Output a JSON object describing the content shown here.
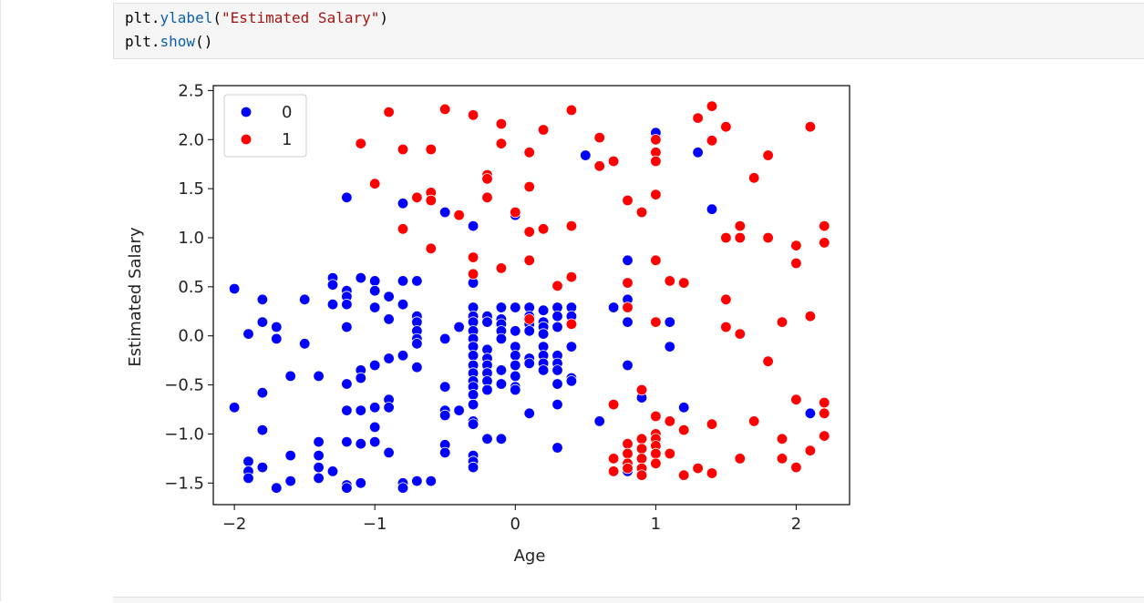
{
  "code_cell": {
    "lines": [
      [
        {
          "t": "plt.",
          "c": ""
        },
        {
          "t": "ylabel",
          "c": "fn"
        },
        {
          "t": "(",
          "c": ""
        },
        {
          "t": "\"Estimated Salary\"",
          "c": "str"
        },
        {
          "t": ")",
          "c": ""
        }
      ],
      [
        {
          "t": "plt.",
          "c": ""
        },
        {
          "t": "show",
          "c": "fn"
        },
        {
          "t": "()",
          "c": ""
        }
      ]
    ]
  },
  "colors": {
    "class_0": "#0000ff",
    "class_1": "#ff0000",
    "code_fn": "#0f5fa8",
    "code_str": "#a31515"
  },
  "chart_data": {
    "type": "scatter",
    "title": "",
    "xlabel": "Age",
    "ylabel": "Estimated Salary",
    "xlim": [
      -2.15,
      2.38
    ],
    "ylim": [
      -1.72,
      2.55
    ],
    "xticks": [
      -2,
      -1,
      0,
      1,
      2
    ],
    "yticks": [
      -1.5,
      -1.0,
      -0.5,
      0.0,
      0.5,
      1.0,
      1.5,
      2.0,
      2.5
    ],
    "xtick_labels": [
      "−2",
      "−1",
      "0",
      "1",
      "2"
    ],
    "ytick_labels": [
      "−1.5",
      "−1.0",
      "−0.5",
      "0.0",
      "0.5",
      "1.0",
      "1.5",
      "2.0",
      "2.5"
    ],
    "grid": false,
    "legend_position": "upper-left",
    "series": [
      {
        "name": "0",
        "color": "#0000ff",
        "points": [
          [
            -2.0,
            0.48
          ],
          [
            -2.0,
            -0.73
          ],
          [
            -1.9,
            0.02
          ],
          [
            -1.9,
            -1.28
          ],
          [
            -1.9,
            -1.38
          ],
          [
            -1.9,
            -1.45
          ],
          [
            -1.8,
            0.37
          ],
          [
            -1.8,
            0.14
          ],
          [
            -1.8,
            -0.58
          ],
          [
            -1.8,
            -0.96
          ],
          [
            -1.8,
            -1.34
          ],
          [
            -1.7,
            0.09
          ],
          [
            -1.7,
            -0.03
          ],
          [
            -1.7,
            -1.55
          ],
          [
            -1.6,
            -0.41
          ],
          [
            -1.6,
            -1.22
          ],
          [
            -1.6,
            -1.48
          ],
          [
            -1.5,
            0.37
          ],
          [
            -1.5,
            -0.08
          ],
          [
            -1.4,
            -0.41
          ],
          [
            -1.4,
            -1.08
          ],
          [
            -1.4,
            -1.22
          ],
          [
            -1.4,
            -1.34
          ],
          [
            -1.4,
            -1.45
          ],
          [
            -1.3,
            0.59
          ],
          [
            -1.3,
            0.52
          ],
          [
            -1.3,
            0.32
          ],
          [
            -1.3,
            -1.38
          ],
          [
            -1.2,
            1.41
          ],
          [
            -1.2,
            0.46
          ],
          [
            -1.2,
            0.4
          ],
          [
            -1.2,
            0.32
          ],
          [
            -1.2,
            0.09
          ],
          [
            -1.2,
            -0.49
          ],
          [
            -1.2,
            -0.76
          ],
          [
            -1.2,
            -1.08
          ],
          [
            -1.2,
            -1.52
          ],
          [
            -1.2,
            -1.55
          ],
          [
            -1.1,
            0.59
          ],
          [
            -1.1,
            -0.35
          ],
          [
            -1.1,
            -0.43
          ],
          [
            -1.1,
            -0.76
          ],
          [
            -1.1,
            -1.1
          ],
          [
            -1.1,
            -1.5
          ],
          [
            -1.0,
            0.56
          ],
          [
            -1.0,
            0.46
          ],
          [
            -1.0,
            0.29
          ],
          [
            -1.0,
            -0.3
          ],
          [
            -1.0,
            -0.73
          ],
          [
            -1.0,
            -0.93
          ],
          [
            -1.0,
            -1.08
          ],
          [
            -0.9,
            0.4
          ],
          [
            -0.9,
            0.17
          ],
          [
            -0.9,
            -0.23
          ],
          [
            -0.9,
            -0.65
          ],
          [
            -0.9,
            -0.73
          ],
          [
            -0.9,
            -1.19
          ],
          [
            -0.8,
            1.35
          ],
          [
            -0.8,
            0.56
          ],
          [
            -0.8,
            0.32
          ],
          [
            -0.8,
            -0.2
          ],
          [
            -0.8,
            -1.5
          ],
          [
            -0.8,
            -1.55
          ],
          [
            -0.7,
            0.56
          ],
          [
            -0.7,
            0.2
          ],
          [
            -0.7,
            0.14
          ],
          [
            -0.7,
            0.05
          ],
          [
            -0.7,
            -0.03
          ],
          [
            -0.7,
            -0.08
          ],
          [
            -0.7,
            -0.32
          ],
          [
            -0.7,
            -1.48
          ],
          [
            -0.6,
            -1.48
          ],
          [
            -0.5,
            1.26
          ],
          [
            -0.5,
            -0.03
          ],
          [
            -0.5,
            -0.52
          ],
          [
            -0.5,
            -0.76
          ],
          [
            -0.5,
            -0.81
          ],
          [
            -0.5,
            -1.11
          ],
          [
            -0.5,
            -1.19
          ],
          [
            -0.4,
            0.09
          ],
          [
            -0.4,
            -0.76
          ],
          [
            -0.3,
            1.12
          ],
          [
            -0.3,
            0.54
          ],
          [
            -0.3,
            0.29
          ],
          [
            -0.3,
            0.2
          ],
          [
            -0.3,
            0.14
          ],
          [
            -0.3,
            0.05
          ],
          [
            -0.3,
            -0.03
          ],
          [
            -0.3,
            -0.11
          ],
          [
            -0.3,
            -0.2
          ],
          [
            -0.3,
            -0.3
          ],
          [
            -0.3,
            -0.38
          ],
          [
            -0.3,
            -0.46
          ],
          [
            -0.3,
            -0.52
          ],
          [
            -0.3,
            -0.6
          ],
          [
            -0.3,
            -0.7
          ],
          [
            -0.3,
            -0.87
          ],
          [
            -0.3,
            -0.9
          ],
          [
            -0.3,
            -1.22
          ],
          [
            -0.3,
            -1.28
          ],
          [
            -0.3,
            -1.34
          ],
          [
            -0.2,
            0.2
          ],
          [
            -0.2,
            0.14
          ],
          [
            -0.2,
            -0.14
          ],
          [
            -0.2,
            -0.23
          ],
          [
            -0.2,
            -0.3
          ],
          [
            -0.2,
            -0.38
          ],
          [
            -0.2,
            -0.46
          ],
          [
            -0.2,
            -0.55
          ],
          [
            -0.2,
            -1.05
          ],
          [
            -0.1,
            0.29
          ],
          [
            -0.1,
            0.17
          ],
          [
            -0.1,
            0.12
          ],
          [
            -0.1,
            0.05
          ],
          [
            -0.1,
            -0.03
          ],
          [
            -0.1,
            -0.35
          ],
          [
            -0.1,
            -0.49
          ],
          [
            -0.1,
            -1.05
          ],
          [
            0.0,
            1.23
          ],
          [
            0.0,
            0.29
          ],
          [
            0.0,
            0.05
          ],
          [
            0.0,
            -0.11
          ],
          [
            0.0,
            -0.2
          ],
          [
            0.0,
            -0.3
          ],
          [
            0.0,
            -0.41
          ],
          [
            0.0,
            -0.52
          ],
          [
            0.0,
            -0.55
          ],
          [
            0.1,
            0.29
          ],
          [
            0.1,
            0.2
          ],
          [
            0.1,
            0.12
          ],
          [
            0.1,
            0.05
          ],
          [
            0.1,
            -0.23
          ],
          [
            0.1,
            -0.28
          ],
          [
            0.1,
            -0.79
          ],
          [
            0.2,
            0.26
          ],
          [
            0.2,
            0.14
          ],
          [
            0.2,
            0.09
          ],
          [
            0.2,
            0.02
          ],
          [
            0.2,
            -0.11
          ],
          [
            0.2,
            -0.2
          ],
          [
            0.2,
            -0.28
          ],
          [
            0.2,
            -0.35
          ],
          [
            0.3,
            0.29
          ],
          [
            0.3,
            0.2
          ],
          [
            0.3,
            0.09
          ],
          [
            0.3,
            -0.2
          ],
          [
            0.3,
            -0.28
          ],
          [
            0.3,
            -0.35
          ],
          [
            0.3,
            -0.49
          ],
          [
            0.3,
            -0.7
          ],
          [
            0.3,
            -1.14
          ],
          [
            0.4,
            0.29
          ],
          [
            0.4,
            0.2
          ],
          [
            0.4,
            -0.11
          ],
          [
            0.4,
            -0.43
          ],
          [
            0.4,
            -0.46
          ],
          [
            0.5,
            1.84
          ],
          [
            0.6,
            -0.87
          ],
          [
            0.7,
            0.29
          ],
          [
            0.8,
            0.77
          ],
          [
            0.8,
            0.37
          ],
          [
            0.8,
            0.14
          ],
          [
            0.8,
            -0.3
          ],
          [
            0.8,
            -1.38
          ],
          [
            0.9,
            -0.63
          ],
          [
            1.0,
            2.07
          ],
          [
            1.1,
            0.14
          ],
          [
            1.1,
            -0.11
          ],
          [
            1.2,
            -0.73
          ],
          [
            1.3,
            1.87
          ],
          [
            1.4,
            1.29
          ],
          [
            2.1,
            -0.79
          ]
        ]
      },
      {
        "name": "1",
        "color": "#ff0000",
        "points": [
          [
            -1.1,
            1.96
          ],
          [
            -1.0,
            1.55
          ],
          [
            -0.9,
            2.28
          ],
          [
            -0.8,
            1.9
          ],
          [
            -0.8,
            1.09
          ],
          [
            -0.7,
            1.41
          ],
          [
            -0.6,
            1.9
          ],
          [
            -0.6,
            1.46
          ],
          [
            -0.6,
            1.38
          ],
          [
            -0.6,
            0.89
          ],
          [
            -0.5,
            2.31
          ],
          [
            -0.4,
            1.23
          ],
          [
            -0.3,
            2.25
          ],
          [
            -0.3,
            0.8
          ],
          [
            -0.3,
            0.63
          ],
          [
            -0.2,
            1.64
          ],
          [
            -0.2,
            1.6
          ],
          [
            -0.2,
            1.41
          ],
          [
            -0.1,
            2.16
          ],
          [
            -0.1,
            1.96
          ],
          [
            -0.1,
            0.69
          ],
          [
            0.0,
            1.26
          ],
          [
            0.1,
            1.87
          ],
          [
            0.1,
            1.52
          ],
          [
            0.1,
            1.06
          ],
          [
            0.1,
            0.77
          ],
          [
            0.1,
            0.17
          ],
          [
            0.2,
            2.1
          ],
          [
            0.2,
            1.09
          ],
          [
            0.3,
            0.51
          ],
          [
            0.4,
            2.3
          ],
          [
            0.4,
            1.12
          ],
          [
            0.4,
            0.6
          ],
          [
            0.4,
            0.12
          ],
          [
            0.6,
            2.02
          ],
          [
            0.6,
            1.73
          ],
          [
            0.7,
            1.78
          ],
          [
            0.7,
            -1.25
          ],
          [
            0.7,
            -1.38
          ],
          [
            0.7,
            -0.7
          ],
          [
            0.8,
            1.38
          ],
          [
            0.8,
            0.54
          ],
          [
            0.8,
            0.29
          ],
          [
            0.8,
            -1.1
          ],
          [
            0.8,
            -1.2
          ],
          [
            0.8,
            -1.3
          ],
          [
            0.8,
            -1.35
          ],
          [
            0.9,
            1.26
          ],
          [
            0.9,
            -0.55
          ],
          [
            0.9,
            -1.05
          ],
          [
            0.9,
            -1.15
          ],
          [
            0.9,
            -1.25
          ],
          [
            0.9,
            -1.35
          ],
          [
            0.9,
            -1.42
          ],
          [
            1.0,
            2.0
          ],
          [
            1.0,
            1.87
          ],
          [
            1.0,
            1.78
          ],
          [
            1.0,
            1.44
          ],
          [
            1.0,
            0.77
          ],
          [
            1.0,
            0.14
          ],
          [
            1.0,
            -0.82
          ],
          [
            1.0,
            -1.0
          ],
          [
            1.0,
            -1.05
          ],
          [
            1.0,
            -1.12
          ],
          [
            1.0,
            -1.2
          ],
          [
            1.0,
            -1.3
          ],
          [
            1.1,
            0.56
          ],
          [
            1.1,
            -0.87
          ],
          [
            1.1,
            -1.2
          ],
          [
            1.2,
            0.54
          ],
          [
            1.2,
            -0.96
          ],
          [
            1.2,
            -1.42
          ],
          [
            1.3,
            2.22
          ],
          [
            1.3,
            -1.35
          ],
          [
            1.4,
            2.34
          ],
          [
            1.4,
            1.99
          ],
          [
            1.4,
            -0.9
          ],
          [
            1.4,
            -1.4
          ],
          [
            1.5,
            2.13
          ],
          [
            1.5,
            1.0
          ],
          [
            1.5,
            0.37
          ],
          [
            1.5,
            0.09
          ],
          [
            1.6,
            1.12
          ],
          [
            1.6,
            1.0
          ],
          [
            1.6,
            0.02
          ],
          [
            1.6,
            -1.25
          ],
          [
            1.7,
            1.61
          ],
          [
            1.7,
            -0.87
          ],
          [
            1.8,
            1.84
          ],
          [
            1.8,
            1.0
          ],
          [
            1.8,
            -0.26
          ],
          [
            1.9,
            0.14
          ],
          [
            1.9,
            -1.05
          ],
          [
            1.9,
            -1.25
          ],
          [
            2.0,
            0.92
          ],
          [
            2.0,
            0.74
          ],
          [
            2.0,
            -0.65
          ],
          [
            2.0,
            -1.34
          ],
          [
            2.1,
            2.13
          ],
          [
            2.1,
            0.2
          ],
          [
            2.1,
            -1.17
          ],
          [
            2.2,
            1.12
          ],
          [
            2.2,
            0.95
          ],
          [
            2.2,
            -0.68
          ],
          [
            2.2,
            -0.79
          ],
          [
            2.2,
            -1.02
          ]
        ]
      }
    ]
  }
}
